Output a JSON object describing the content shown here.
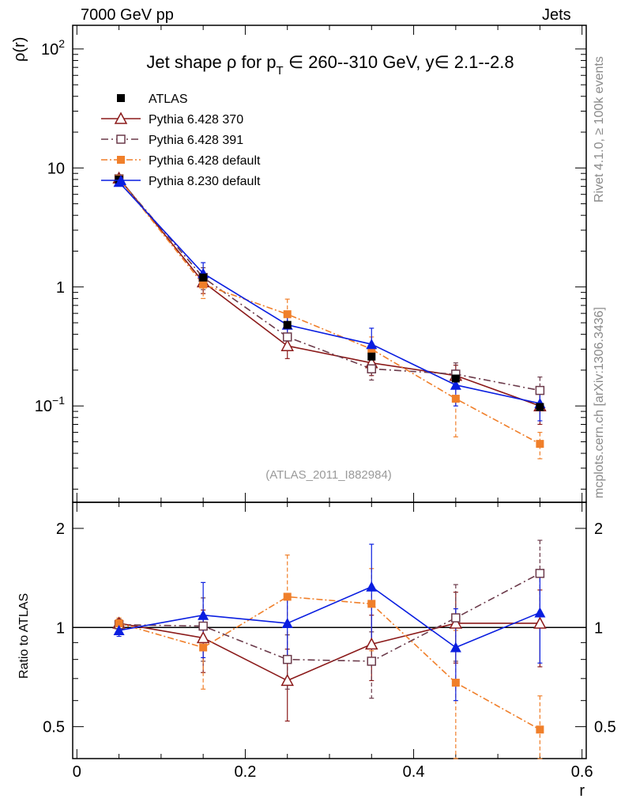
{
  "header": {
    "left": "7000 GeV pp",
    "right": "Jets",
    "side_top": "Rivet 4.1.0, ≥ 100k events",
    "side_bottom": "mcplots.cern.ch [arXiv:1306.3436]"
  },
  "chart_data": {
    "type": "line",
    "title_parts": {
      "pre": "Jet shape ρ for p",
      "sub": "T",
      "post": " ∈ 260--310 GeV, y∈ 2.1--2.8"
    },
    "upper_ylabel": "ρ(r)",
    "lower_ylabel": "Ratio to ATLAS",
    "xlabel": "r",
    "analysis_label": "(ATLAS_2011_I882984)",
    "x": [
      0.05,
      0.15,
      0.25,
      0.35,
      0.45,
      0.55
    ],
    "xlim": [
      -0.005,
      0.605
    ],
    "x_ticks": [
      0,
      0.2,
      0.4,
      0.6
    ],
    "x_tick_labels": [
      "0",
      "0.2",
      "0.4",
      "0.6"
    ],
    "upper_yscale": "log",
    "upper_ylim": [
      0.0155,
      158
    ],
    "upper_ytick_labels": [
      {
        "value": 100,
        "base": "10",
        "exp": "2"
      },
      {
        "value": 10,
        "base": "10",
        "exp": ""
      },
      {
        "value": 1,
        "base": "1",
        "exp": ""
      },
      {
        "value": 0.1,
        "base": "10",
        "exp": "−1"
      }
    ],
    "ratio_yscale": "log",
    "ratio_ylim": [
      0.4,
      2.4
    ],
    "ratio_ytick_labels": [
      {
        "value": 2,
        "label": "2"
      },
      {
        "value": 1,
        "label": "1"
      },
      {
        "value": 0.5,
        "label": "0.5"
      }
    ],
    "series": [
      {
        "name": "ATLAS",
        "kind": "data",
        "color": "#000000",
        "marker": "filled-square",
        "dash": "",
        "values": [
          8.0,
          1.2,
          0.48,
          0.26,
          0.17,
          0.098
        ],
        "err": [
          0.3,
          0.08,
          0.03,
          0.02,
          0.01,
          0.006
        ],
        "ratio": [
          1,
          1,
          1,
          1,
          1,
          1
        ],
        "ratio_err": [
          0,
          0,
          0,
          0,
          0,
          0
        ]
      },
      {
        "name": "Pythia 6.428 370",
        "kind": "mc",
        "color": "#8b1a1a",
        "marker": "open-triangle",
        "dash": "",
        "values": [
          8.2,
          1.1,
          0.32,
          0.23,
          0.18,
          0.1
        ],
        "err": [
          0.35,
          0.22,
          0.07,
          0.05,
          0.04,
          0.03
        ],
        "ratio": [
          1.03,
          0.93,
          0.69,
          0.89,
          1.03,
          1.03
        ],
        "ratio_err": [
          0.03,
          0.2,
          0.17,
          0.2,
          0.25,
          0.27
        ]
      },
      {
        "name": "Pythia 6.428 391",
        "kind": "mc",
        "color": "#6b3a4a",
        "marker": "open-square",
        "dash": "9,4,2,4",
        "values": [
          8.1,
          1.2,
          0.38,
          0.205,
          0.185,
          0.135
        ],
        "err": [
          0.35,
          0.25,
          0.08,
          0.04,
          0.045,
          0.04
        ],
        "ratio": [
          1.02,
          1.01,
          0.8,
          0.79,
          1.07,
          1.46
        ],
        "ratio_err": [
          0.04,
          0.22,
          0.15,
          0.18,
          0.28,
          0.38
        ]
      },
      {
        "name": "Pythia 6.428 default",
        "kind": "mc",
        "color": "#f07f2a",
        "marker": "filled-square",
        "dash": "8,3,2,3",
        "values": [
          8.1,
          1.05,
          0.59,
          0.3,
          0.115,
          0.048
        ],
        "err": [
          0.35,
          0.25,
          0.2,
          0.08,
          0.06,
          0.012
        ],
        "ratio": [
          1.03,
          0.87,
          1.24,
          1.18,
          0.68,
          0.49
        ],
        "ratio_err": [
          0.04,
          0.22,
          0.42,
          0.33,
          0.3,
          0.13
        ]
      },
      {
        "name": "Pythia 8.230 default",
        "kind": "mc",
        "color": "#0a1ee0",
        "marker": "filled-triangle",
        "dash": "",
        "values": [
          7.6,
          1.3,
          0.48,
          0.33,
          0.15,
          0.105
        ],
        "err": [
          0.3,
          0.3,
          0.1,
          0.12,
          0.05,
          0.03
        ],
        "ratio": [
          0.98,
          1.09,
          1.03,
          1.33,
          0.87,
          1.11
        ],
        "ratio_err": [
          0.04,
          0.28,
          0.22,
          0.46,
          0.27,
          0.33
        ]
      }
    ]
  }
}
